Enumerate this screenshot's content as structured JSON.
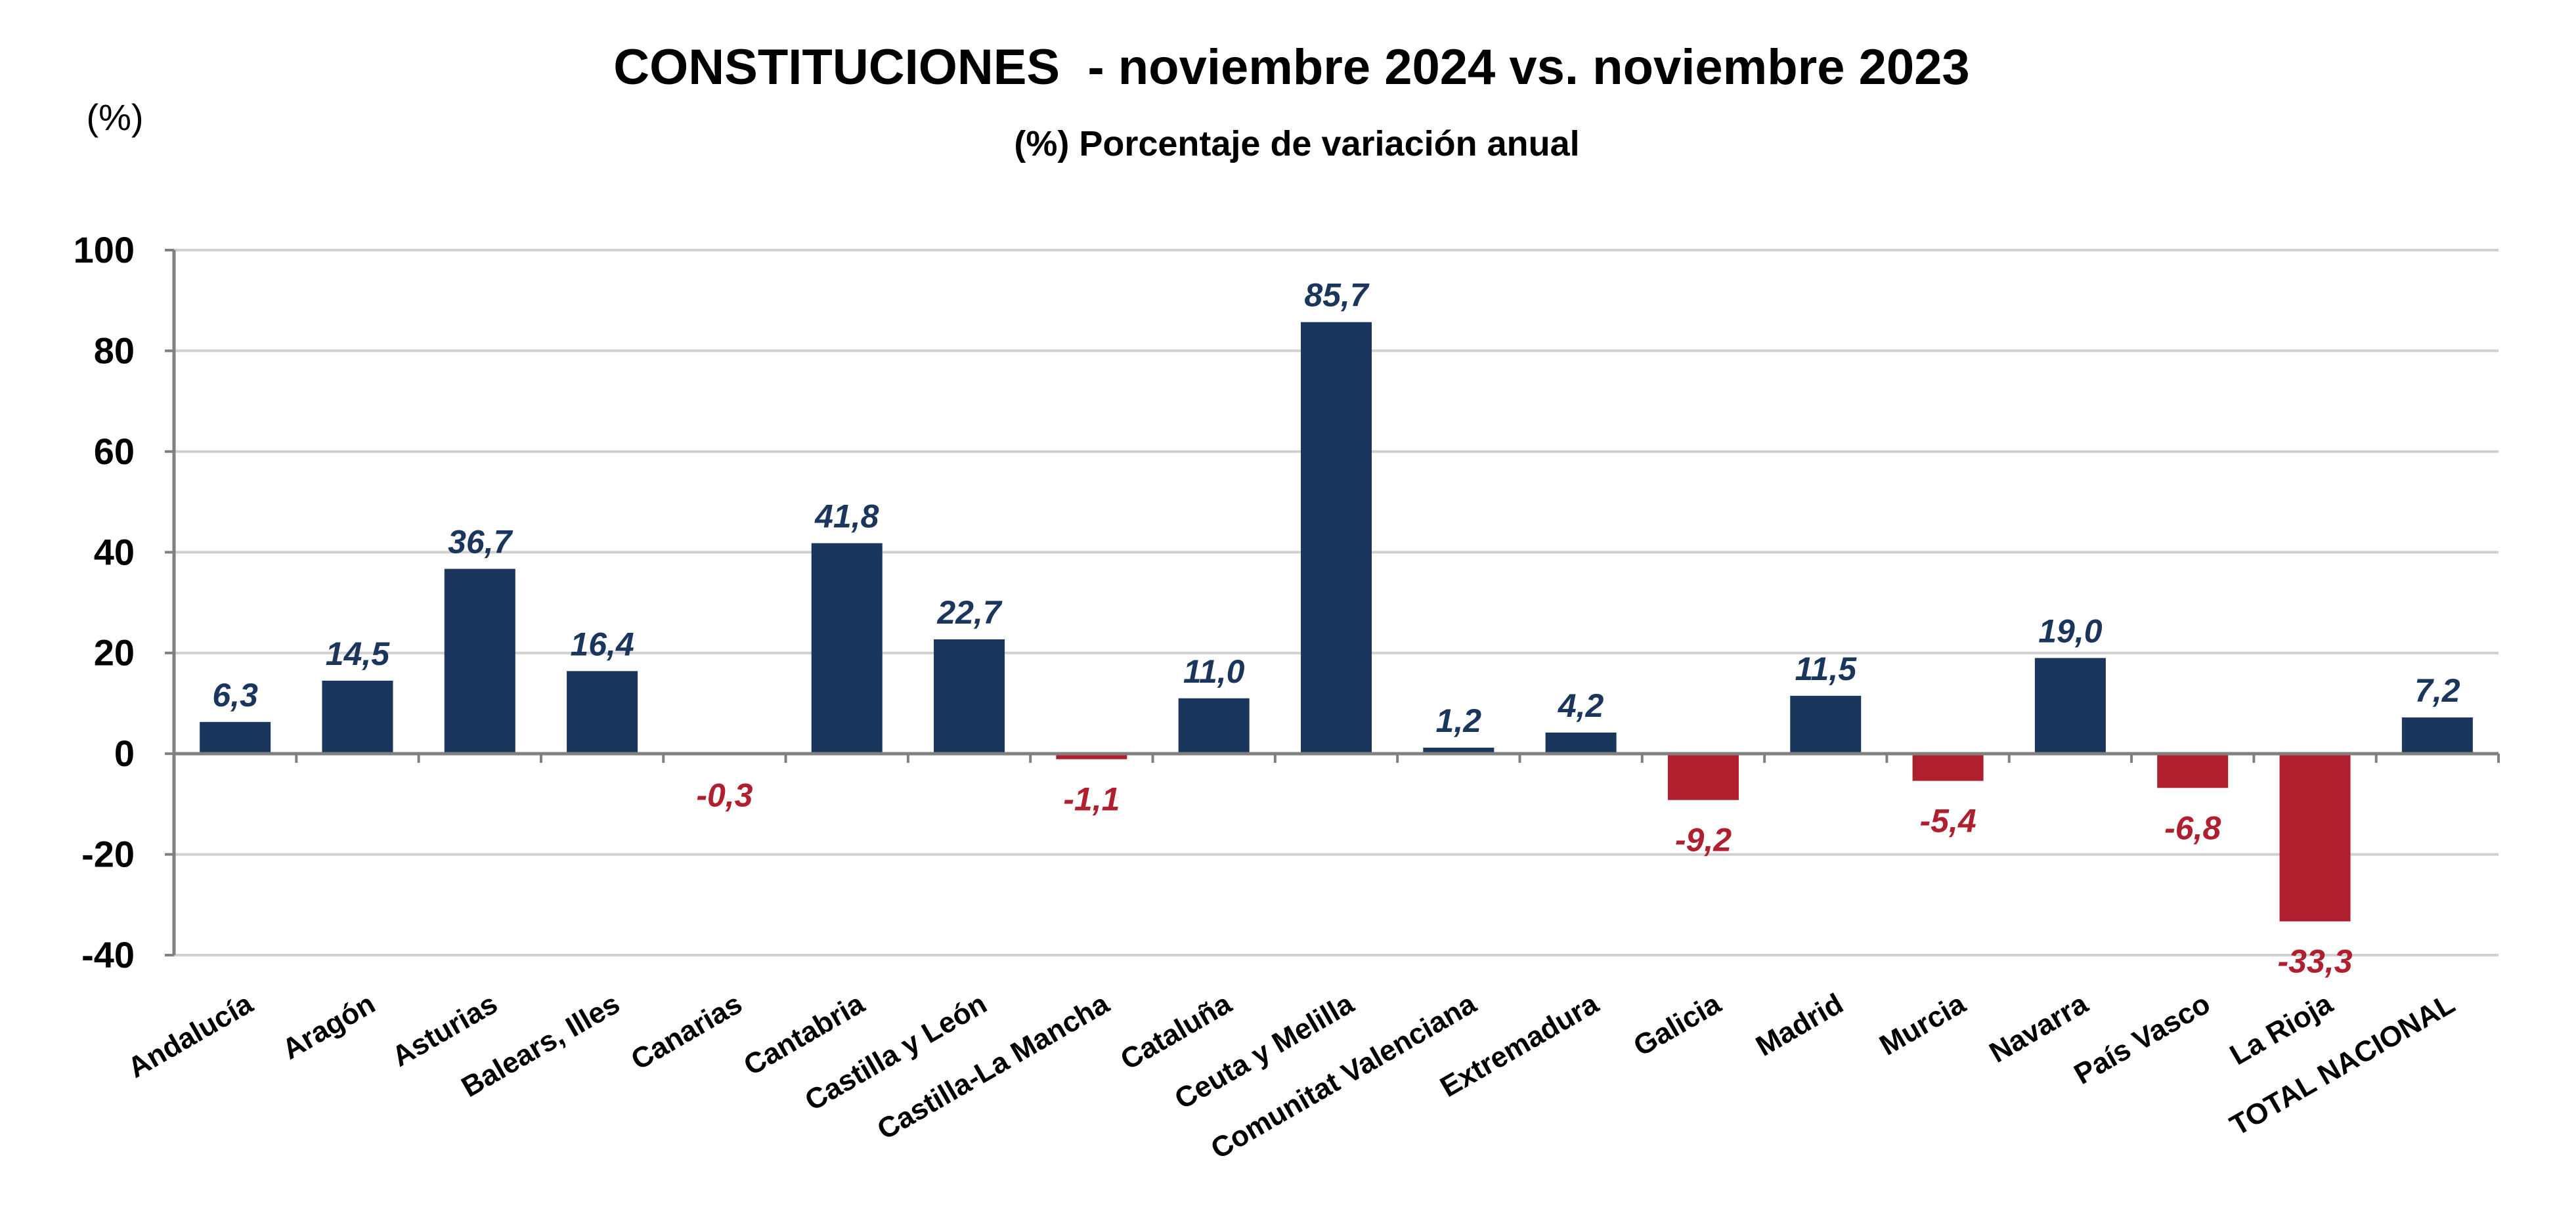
{
  "chart_data": {
    "type": "bar",
    "title": "CONSTITUCIONES  - noviembre 2024 vs. noviembre 2023",
    "subtitle": "(%) Porcentaje de variación anual",
    "unit_label": "(%)",
    "categories": [
      "Andalucía",
      "Aragón",
      "Asturias",
      "Balears, Illes",
      "Canarias",
      "Cantabria",
      "Castilla y León",
      "Castilla-La Mancha",
      "Cataluña",
      "Ceuta y Melilla",
      "Comunitat Valenciana",
      "Extremadura",
      "Galicia",
      "Madrid",
      "Murcia",
      "Navarra",
      "País Vasco",
      "La Rioja",
      "TOTAL NACIONAL"
    ],
    "values": [
      6.3,
      14.5,
      36.7,
      16.4,
      -0.3,
      41.8,
      22.7,
      -1.1,
      11.0,
      85.7,
      1.2,
      4.2,
      -9.2,
      11.5,
      -5.4,
      19.0,
      -6.8,
      -33.3,
      7.2
    ],
    "data_labels": [
      "6,3",
      "14,5",
      "36,7",
      "16,4",
      "-0,3",
      "41,8",
      "22,7",
      "-1,1",
      "11,0",
      "85,7",
      "1,2",
      "4,2",
      "-9,2",
      "11,5",
      "-5,4",
      "19,0",
      "-6,8",
      "-33,3",
      "7,2"
    ],
    "ylim": [
      -40,
      100
    ],
    "yticks": [
      100,
      80,
      60,
      40,
      20,
      0,
      -20,
      -40
    ],
    "grid": true,
    "legend": "none",
    "colors": {
      "positive": "#1b365d",
      "negative": "#b01f2e",
      "positive_label": "#1b365d",
      "negative_label": "#b01f2e"
    }
  }
}
